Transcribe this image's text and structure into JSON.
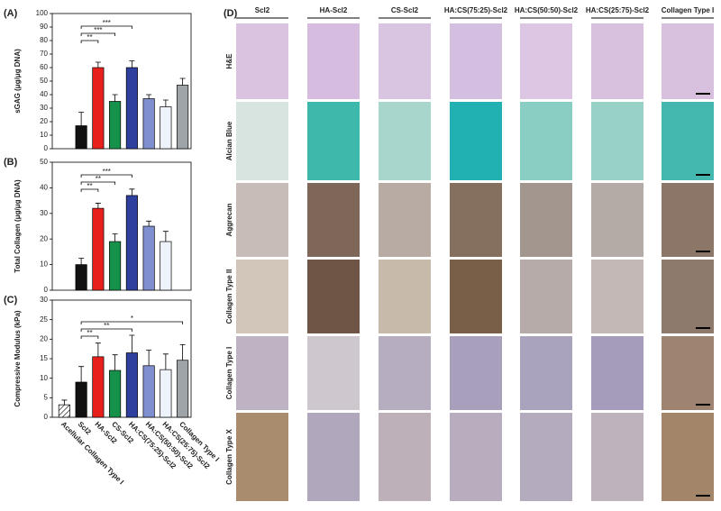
{
  "chart_data": [
    {
      "type": "bar",
      "panel": "(A)",
      "y_label": "sGAG (μg/μg DNA)",
      "values": [
        null,
        17,
        60,
        35,
        60,
        37,
        31,
        47
      ],
      "errors": [
        null,
        10,
        4,
        5,
        5,
        3,
        5,
        5
      ],
      "colors": [
        "#ffffff",
        "#111111",
        "#e8201c",
        "#16914a",
        "#2f3f9e",
        "#7f8fcf",
        "#eef3fb",
        "#9ea4a7"
      ],
      "ylim": [
        0,
        100
      ],
      "yticks": [
        0,
        10,
        20,
        30,
        40,
        50,
        60,
        70,
        80,
        90,
        100
      ],
      "annotations": [
        {
          "text": "**",
          "from": 1,
          "to": 2
        },
        {
          "text": "***",
          "from": 1,
          "to": 3
        },
        {
          "text": "***",
          "from": 1,
          "to": 4
        }
      ]
    },
    {
      "type": "bar",
      "panel": "(B)",
      "y_label": "Total Collagen (μg/μg DNA)",
      "values": [
        null,
        10,
        32,
        19,
        37,
        25,
        19,
        null
      ],
      "errors": [
        null,
        2.5,
        2,
        3,
        2.5,
        2,
        4,
        null
      ],
      "colors": [
        "#ffffff",
        "#111111",
        "#e8201c",
        "#16914a",
        "#2f3f9e",
        "#7f8fcf",
        "#eef3fb",
        "#9ea4a7"
      ],
      "ylim": [
        0,
        50
      ],
      "yticks": [
        0,
        10,
        20,
        30,
        40,
        50
      ],
      "annotations": [
        {
          "text": "**",
          "from": 1,
          "to": 2
        },
        {
          "text": "**",
          "from": 1,
          "to": 3
        },
        {
          "text": "***",
          "from": 1,
          "to": 4
        }
      ]
    },
    {
      "type": "bar",
      "panel": "(C)",
      "y_label": "Compressive Modulus (kPa)",
      "categories": [
        "Acellular Collagen Type I",
        "Scl2",
        "HA-Scl2",
        "CS-Scl2",
        "HA:CS(75:25)-Scl2",
        "HA:CS(50:50)-Scl2",
        "HA:CS(25:75)-Scl2",
        "Collagen Type I"
      ],
      "values": [
        3.2,
        9,
        15.5,
        12,
        16.5,
        13.2,
        12.2,
        14.6
      ],
      "errors": [
        1.2,
        4,
        3.5,
        4,
        4.5,
        4,
        4,
        4
      ],
      "colors": [
        "#ffffff",
        "#111111",
        "#e8201c",
        "#16914a",
        "#2f3f9e",
        "#7f8fcf",
        "#eef3fb",
        "#9ea4a7"
      ],
      "hatched": [
        0
      ],
      "ylim": [
        0,
        30
      ],
      "yticks": [
        0,
        5,
        10,
        15,
        20,
        25,
        30
      ],
      "annotations": [
        {
          "text": "**",
          "from": 1,
          "to": 2
        },
        {
          "text": "**",
          "from": 1,
          "to": 4
        },
        {
          "text": "*",
          "from": 1,
          "to": 7
        }
      ]
    }
  ],
  "histology": {
    "panel": "(D)",
    "columns": [
      "Scl2",
      "HA-Scl2",
      "CS-Scl2",
      "HA:CS(75:25)-Scl2",
      "HA:CS(50:50)-Scl2",
      "HA:CS(25:75)-Scl2",
      "Collagen Type I"
    ],
    "rows": [
      "H&E",
      "Alcian Blue",
      "Aggrecan",
      "Collagen Type II",
      "Collagen Type I",
      "Collagen Type X"
    ]
  }
}
